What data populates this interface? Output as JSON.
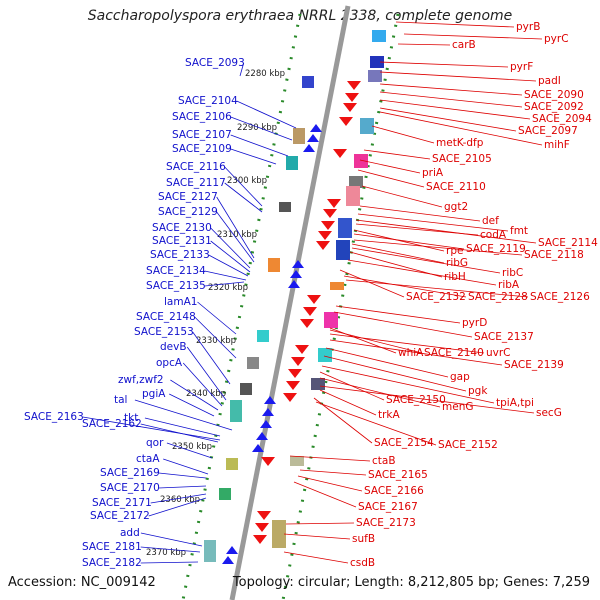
{
  "title": "Saccharopolyspora erythraea NRRL 2338, complete genome",
  "footer": {
    "accession": "Accession: NC_009142",
    "topology": "Topology: circular; Length: 8,212,805 bp; Genes: 7,259"
  },
  "colors": {
    "left_labels": "#1010cc",
    "right_labels": "#dd0000",
    "spine": "#999999",
    "ticks": "#2a8a2a"
  },
  "kbp_ticks": [
    "2280 kbp",
    "2290 kbp",
    "2300 kbp",
    "2310 kbp",
    "2320 kbp",
    "2330 kbp",
    "2340 kbp",
    "2350 kbp",
    "2360 kbp",
    "2370 kbp"
  ],
  "left_genes": [
    "SACE_2093",
    "SACE_2104",
    "SACE_2106",
    "SACE_2107",
    "SACE_2109",
    "SACE_2116",
    "SACE_2117",
    "SACE_2127",
    "SACE_2129",
    "SACE_2130",
    "SACE_2131",
    "SACE_2133",
    "SACE_2134",
    "SACE_2135",
    "lamA1",
    "SACE_2148",
    "SACE_2153",
    "devB",
    "opcA",
    "zwf,zwf2",
    "pgiA",
    "tal",
    "SACE_2163",
    "SACE_2162",
    "tkt",
    "qor",
    "ctaA",
    "SACE_2169",
    "SACE_2170",
    "SACE_2171",
    "SACE_2172",
    "add",
    "SACE_2181",
    "SACE_2182"
  ],
  "right_genes": [
    "pyrB",
    "pyrC",
    "carB",
    "pyrF",
    "padI",
    "SACE_2090",
    "SACE_2092",
    "SACE_2094",
    "SACE_2097",
    "mihF",
    "metK-dfp",
    "SACE_2105",
    "priA",
    "SACE_2110",
    "ggt2",
    "def",
    "fmt",
    "SACE_2114",
    "codA",
    "rpe",
    "SACE_2119",
    "SACE_2118",
    "ribG",
    "ribC",
    "ribH",
    "ribA",
    "SACE_2132",
    "SACE_2128",
    "SACE_2126",
    "pyrD",
    "SACE_2137",
    "whiA",
    "SACE_2140",
    "uvrC",
    "SACE_2139",
    "gap",
    "pgk",
    "SACE_2150",
    "menG",
    "tpiA,tpi",
    "secG",
    "trkA",
    "SACE_2154",
    "SACE_2152",
    "ctaB",
    "SACE_2165",
    "SACE_2166",
    "SACE_2167",
    "SACE_2173",
    "sufB",
    "csdB"
  ]
}
